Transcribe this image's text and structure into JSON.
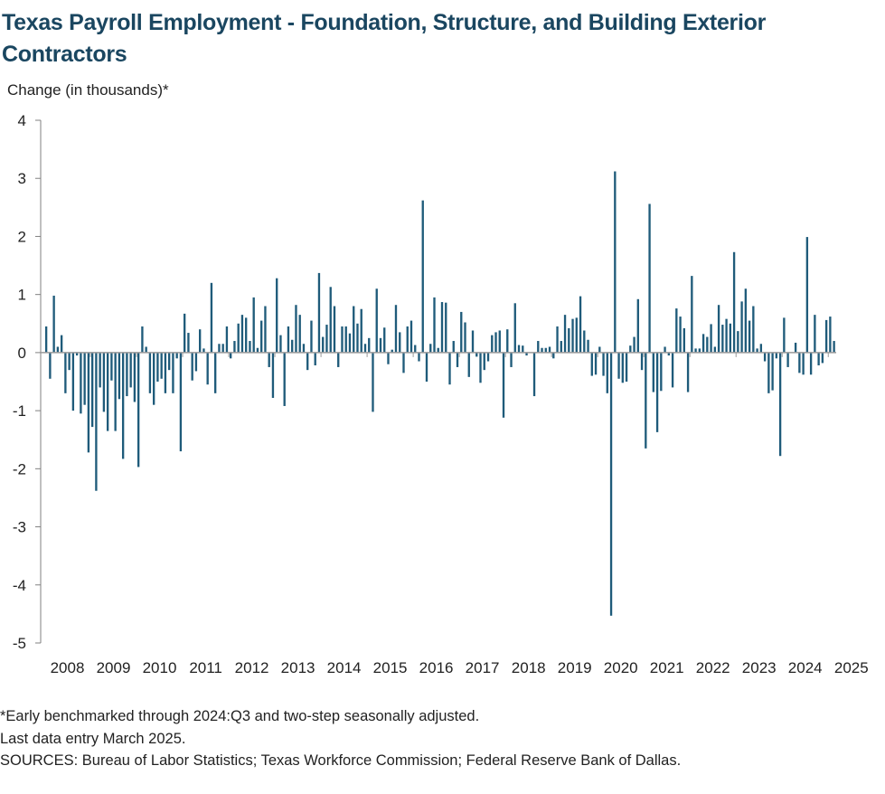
{
  "chart_data": {
    "type": "bar",
    "title": "Texas Payroll Employment - Foundation, Structure, and Building Exterior Contractors",
    "ylabel": "Change (in thousands)*",
    "xlabel": "",
    "ylim": [
      -5,
      4
    ],
    "yticks": [
      "4",
      "3",
      "2",
      "1",
      "0",
      "-1",
      "-2",
      "-3",
      "-4",
      "-5"
    ],
    "years": [
      "2008",
      "2009",
      "2010",
      "2011",
      "2012",
      "2013",
      "2014",
      "2015",
      "2016",
      "2017",
      "2018",
      "2019",
      "2020",
      "2021",
      "2022",
      "2023",
      "2024",
      "2025"
    ],
    "start": "January 2008",
    "end": "March 2025",
    "series": [
      {
        "name": "Monthly change",
        "color": "#1f5b7a",
        "values": [
          0.45,
          -0.45,
          0.98,
          0.1,
          0.3,
          -0.7,
          -0.3,
          -1.0,
          -0.05,
          -1.05,
          -0.9,
          -1.72,
          -1.28,
          -2.38,
          -0.6,
          -1.02,
          -1.35,
          -0.48,
          -1.35,
          -0.8,
          -1.83,
          -0.75,
          -0.6,
          -0.85,
          -1.97,
          0.45,
          0.1,
          -0.7,
          -0.9,
          -0.5,
          -0.45,
          -0.7,
          -0.3,
          -0.7,
          -0.1,
          -1.7,
          0.67,
          0.34,
          -0.48,
          -0.32,
          0.4,
          0.07,
          -0.55,
          1.2,
          -0.7,
          0.15,
          0.15,
          0.45,
          -0.1,
          0.2,
          0.5,
          0.65,
          0.6,
          0.2,
          0.95,
          0.08,
          0.55,
          0.8,
          -0.25,
          -0.78,
          1.28,
          0.3,
          -0.92,
          0.45,
          0.22,
          0.82,
          0.65,
          0.15,
          -0.3,
          0.55,
          -0.22,
          1.37,
          0.27,
          0.48,
          1.13,
          0.8,
          -0.25,
          0.45,
          0.45,
          0.33,
          0.8,
          0.5,
          0.75,
          0.15,
          0.25,
          -1.02,
          1.1,
          0.25,
          0.43,
          -0.2,
          0.05,
          0.82,
          0.35,
          -0.35,
          0.45,
          0.55,
          0.13,
          -0.15,
          2.62,
          -0.5,
          0.15,
          0.95,
          0.08,
          0.87,
          0.86,
          -0.55,
          0.2,
          -0.25,
          0.7,
          0.52,
          -0.42,
          0.38,
          -0.07,
          -0.52,
          -0.3,
          -0.15,
          0.3,
          0.35,
          0.38,
          -1.12,
          0.4,
          -0.25,
          0.85,
          0.13,
          0.12,
          -0.05,
          0.0,
          -0.75,
          0.2,
          0.08,
          0.08,
          0.1,
          -0.1,
          0.45,
          0.2,
          0.65,
          0.42,
          0.58,
          0.6,
          0.97,
          0.38,
          0.22,
          -0.4,
          -0.38,
          0.1,
          -0.4,
          -0.7,
          -4.53,
          3.12,
          -0.45,
          -0.52,
          -0.5,
          0.12,
          0.27,
          0.92,
          -0.3,
          -1.65,
          2.56,
          -0.68,
          -1.37,
          -0.66,
          0.1,
          -0.05,
          -0.6,
          0.76,
          0.62,
          0.42,
          -0.68,
          1.32,
          0.07,
          0.07,
          0.32,
          0.27,
          0.49,
          0.1,
          0.82,
          0.48,
          0.58,
          0.5,
          1.73,
          0.37,
          0.88,
          1.1,
          0.55,
          0.8,
          0.07,
          0.15,
          -0.15,
          -0.7,
          -0.65,
          -0.1,
          -1.78,
          0.6,
          -0.25,
          0.0,
          0.17,
          -0.35,
          -0.38,
          1.99,
          -0.38,
          0.65,
          -0.22,
          -0.18,
          0.56,
          0.62,
          0.2,
          0.0
        ]
      }
    ]
  },
  "notes": {
    "footnote": "*Early benchmarked through 2024:Q3 and two-step seasonally adjusted.",
    "last_entry": "Last data entry March 2025.",
    "sources": "SOURCES:  Bureau of Labor Statistics; Texas Workforce Commission;  Federal Reserve Bank of Dallas."
  }
}
